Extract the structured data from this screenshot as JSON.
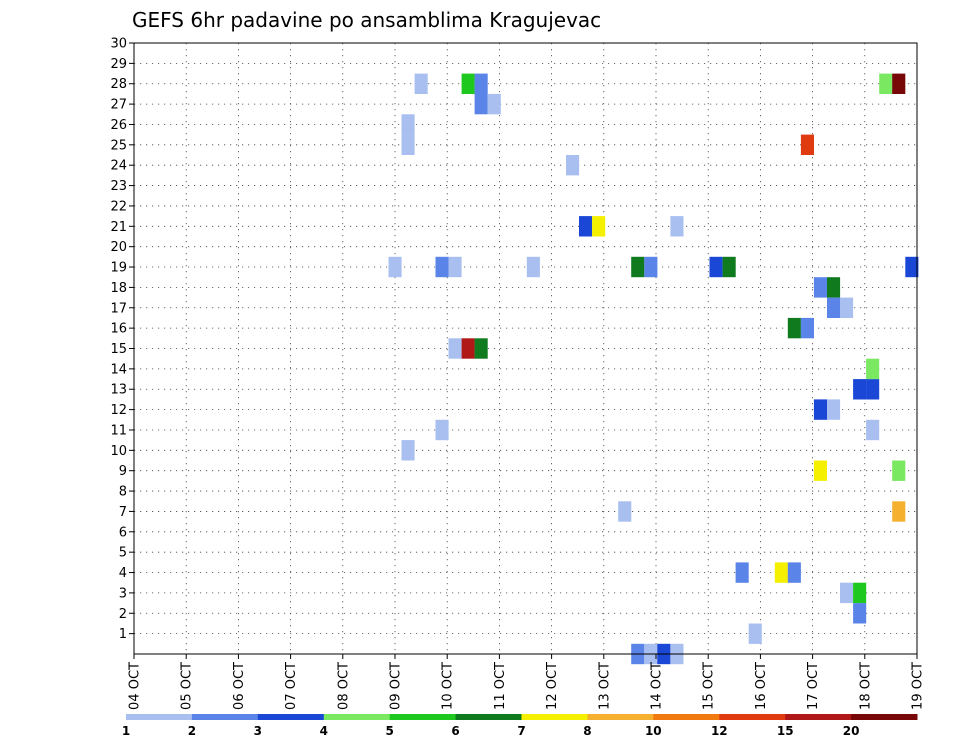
{
  "chart_data": {
    "type": "heatmap",
    "title": "GEFS 6hr padavine po ansamblima Kragujevac",
    "xlabel": "",
    "ylabel": "",
    "x_tick_labels": [
      "04 OCT",
      "05 OCT",
      "06 OCT",
      "07 OCT",
      "08 OCT",
      "09 OCT",
      "10 OCT",
      "11 OCT",
      "12 OCT",
      "13 OCT",
      "14 OCT",
      "15 OCT",
      "16 OCT",
      "17 OCT",
      "18 OCT",
      "19 OCT"
    ],
    "xlim_days": [
      4,
      19
    ],
    "ylim": [
      0,
      30
    ],
    "y_tick_labels": [
      "1",
      "2",
      "3",
      "4",
      "5",
      "6",
      "7",
      "8",
      "9",
      "10",
      "11",
      "12",
      "13",
      "14",
      "15",
      "16",
      "17",
      "18",
      "19",
      "20",
      "21",
      "22",
      "23",
      "24",
      "25",
      "26",
      "27",
      "28",
      "29",
      "30"
    ],
    "grid": true,
    "colorbar": {
      "levels": [
        "1",
        "2",
        "3",
        "4",
        "5",
        "6",
        "7",
        "8",
        "10",
        "12",
        "15",
        "20"
      ],
      "colors": [
        "#a8bff0",
        "#5b84e8",
        "#1a47d6",
        "#7ae860",
        "#1ec81e",
        "#0f7a1e",
        "#f5f000",
        "#f5b030",
        "#f07a10",
        "#e03a10",
        "#b01818",
        "#780808"
      ]
    },
    "cells": [
      {
        "day": 9.25,
        "member": 10,
        "value": 1
      },
      {
        "day": 9.25,
        "member": 25,
        "value": 1
      },
      {
        "day": 9.25,
        "member": 26,
        "value": 1
      },
      {
        "day": 9.0,
        "member": 19,
        "value": 1
      },
      {
        "day": 9.5,
        "member": 28,
        "value": 1
      },
      {
        "day": 9.9,
        "member": 11,
        "value": 1
      },
      {
        "day": 9.9,
        "member": 19,
        "value": 2
      },
      {
        "day": 10.15,
        "member": 19,
        "value": 1
      },
      {
        "day": 10.15,
        "member": 15,
        "value": 1
      },
      {
        "day": 10.4,
        "member": 15,
        "value": 15
      },
      {
        "day": 10.65,
        "member": 15,
        "value": 6
      },
      {
        "day": 10.4,
        "member": 28,
        "value": 5
      },
      {
        "day": 10.65,
        "member": 28,
        "value": 2
      },
      {
        "day": 10.65,
        "member": 27,
        "value": 2
      },
      {
        "day": 10.9,
        "member": 27,
        "value": 1
      },
      {
        "day": 11.65,
        "member": 19,
        "value": 1
      },
      {
        "day": 12.4,
        "member": 24,
        "value": 1
      },
      {
        "day": 12.65,
        "member": 21,
        "value": 3
      },
      {
        "day": 12.9,
        "member": 21,
        "value": 7
      },
      {
        "day": 13.4,
        "member": 7,
        "value": 1
      },
      {
        "day": 13.65,
        "member": 19,
        "value": 6
      },
      {
        "day": 13.9,
        "member": 19,
        "value": 2
      },
      {
        "day": 13.65,
        "member": 0,
        "value": 2
      },
      {
        "day": 13.9,
        "member": 0,
        "value": 1
      },
      {
        "day": 14.15,
        "member": 0,
        "value": 3
      },
      {
        "day": 14.4,
        "member": 0,
        "value": 1
      },
      {
        "day": 14.4,
        "member": 21,
        "value": 1
      },
      {
        "day": 15.15,
        "member": 19,
        "value": 3
      },
      {
        "day": 15.4,
        "member": 19,
        "value": 6
      },
      {
        "day": 15.65,
        "member": 4,
        "value": 2
      },
      {
        "day": 15.9,
        "member": 1,
        "value": 1
      },
      {
        "day": 16.4,
        "member": 4,
        "value": 7
      },
      {
        "day": 16.65,
        "member": 4,
        "value": 2
      },
      {
        "day": 16.65,
        "member": 16,
        "value": 6
      },
      {
        "day": 16.9,
        "member": 16,
        "value": 2
      },
      {
        "day": 16.9,
        "member": 25,
        "value": 12
      },
      {
        "day": 17.15,
        "member": 18,
        "value": 2
      },
      {
        "day": 17.4,
        "member": 18,
        "value": 6
      },
      {
        "day": 17.4,
        "member": 17,
        "value": 2
      },
      {
        "day": 17.65,
        "member": 17,
        "value": 1
      },
      {
        "day": 17.15,
        "member": 12,
        "value": 3
      },
      {
        "day": 17.4,
        "member": 12,
        "value": 1
      },
      {
        "day": 17.15,
        "member": 9,
        "value": 7
      },
      {
        "day": 17.65,
        "member": 3,
        "value": 1
      },
      {
        "day": 17.9,
        "member": 3,
        "value": 5
      },
      {
        "day": 17.9,
        "member": 2,
        "value": 2
      },
      {
        "day": 17.9,
        "member": 13,
        "value": 3
      },
      {
        "day": 18.15,
        "member": 13,
        "value": 3
      },
      {
        "day": 18.15,
        "member": 14,
        "value": 4
      },
      {
        "day": 18.15,
        "member": 11,
        "value": 1
      },
      {
        "day": 18.4,
        "member": 28,
        "value": 4
      },
      {
        "day": 18.65,
        "member": 28,
        "value": 20
      },
      {
        "day": 18.65,
        "member": 9,
        "value": 4
      },
      {
        "day": 18.65,
        "member": 7,
        "value": 8
      },
      {
        "day": 18.9,
        "member": 19,
        "value": 3
      }
    ]
  }
}
